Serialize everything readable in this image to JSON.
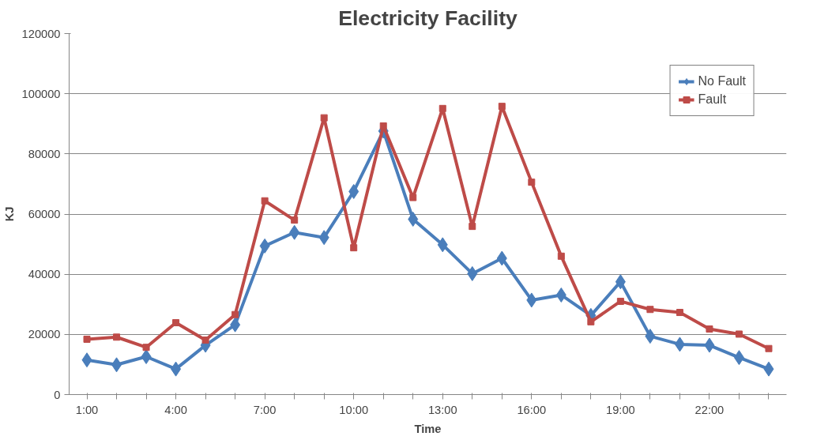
{
  "chart_data": {
    "type": "line",
    "title": "Electricity Facility",
    "xlabel": "Time",
    "ylabel": "KJ",
    "categories": [
      "1:00",
      null,
      null,
      "4:00",
      null,
      null,
      "7:00",
      null,
      null,
      "10:00",
      null,
      null,
      "13:00",
      null,
      null,
      "16:00",
      null,
      null,
      "19:00",
      null,
      null,
      "22:00",
      null,
      null
    ],
    "series": [
      {
        "name": "No Fault",
        "color": "#4a7ebb",
        "marker": "diamond",
        "values": [
          11500,
          9900,
          12600,
          8500,
          16400,
          23200,
          49400,
          53900,
          52200,
          67500,
          87600,
          58300,
          49800,
          40200,
          45300,
          31400,
          33100,
          26300,
          37500,
          19400,
          16700,
          16400,
          12300,
          8500
        ]
      },
      {
        "name": "Fault",
        "color": "#be4b48",
        "marker": "square",
        "values": [
          18400,
          19100,
          15700,
          23900,
          18100,
          26600,
          64400,
          58000,
          92000,
          48800,
          89300,
          65500,
          95100,
          55900,
          95800,
          70600,
          46000,
          24200,
          31000,
          28300,
          27300,
          21800,
          20100,
          15300
        ]
      }
    ],
    "ylim": [
      0,
      120000
    ],
    "yticks": [
      0,
      20000,
      40000,
      60000,
      80000,
      100000,
      120000
    ],
    "grid": "y",
    "legend": "top right",
    "line_style": "solid"
  }
}
